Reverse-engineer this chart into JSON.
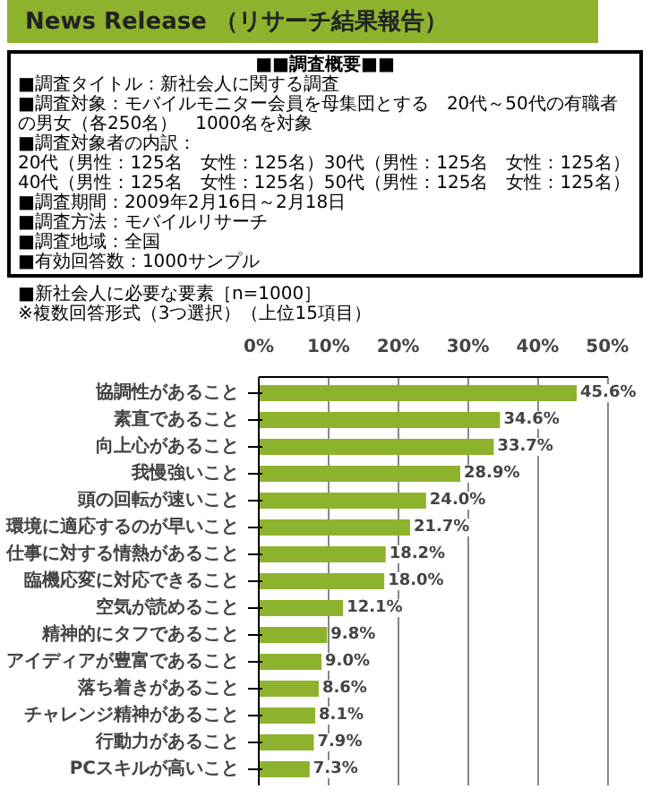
{
  "chart_data": {
    "type": "bar",
    "orientation": "horizontal",
    "title": "News Release （リサーチ結果報告）",
    "subtitle": "■新社会人に必要な要素［n=1000］\n※複数回答形式（3つ選択）（上位15項目）",
    "annotations": [
      "■■調査概要■■",
      "■調査タイトル：新社会人に関する調査",
      "■調査対象：モバイルモニター会員を母集団とする　20代～50代の有職者の男女（各250名）　1000名を対象",
      "■調査対象者の内訳：",
      "20代（男性：125名　女性：125名）30代（男性：125名　女性：125名）",
      "40代（男性：125名　女性：125名）50代（男性：125名　女性：125名）",
      "■調査期間：2009年2月16日～2月18日",
      "■調査方法：モバイルリサーチ",
      "■調査地域：全国",
      "■有効回答数：1000サンプル"
    ],
    "categories": [
      "協調性があること",
      "素直であること",
      "向上心があること",
      "我慢強いこと",
      "頭の回転が速いこと",
      "環境に適応するのが早いこと",
      "仕事に対する情熱があること",
      "臨機応変に対応できること",
      "空気が読めること",
      "精神的にタフであること",
      "アイディアが豊富であること",
      "落ち着きがあること",
      "チャレンジ精神があること",
      "行動力があること",
      "PCスキルが高いこと"
    ],
    "values": [
      45.6,
      34.6,
      33.7,
      28.9,
      24.0,
      21.7,
      18.2,
      18.0,
      12.1,
      9.8,
      9.0,
      8.6,
      8.1,
      7.9,
      7.3
    ],
    "value_labels": [
      "45.6%",
      "34.6%",
      "33.7%",
      "28.9%",
      "24.0%",
      "21.7%",
      "18.2%",
      "18.0%",
      "12.1%",
      "9.8%",
      "9.0%",
      "8.6%",
      "8.1%",
      "7.9%",
      "7.3%"
    ],
    "color": "#8db32e",
    "xlim": [
      0,
      50
    ],
    "xticks": [
      {
        "value": 0,
        "label": "0%"
      },
      {
        "value": 10,
        "label": "10%"
      },
      {
        "value": 20,
        "label": "20%"
      },
      {
        "value": 30,
        "label": "30%"
      },
      {
        "value": 40,
        "label": "40%"
      },
      {
        "value": 50,
        "label": "50%"
      }
    ],
    "grid": "x"
  }
}
